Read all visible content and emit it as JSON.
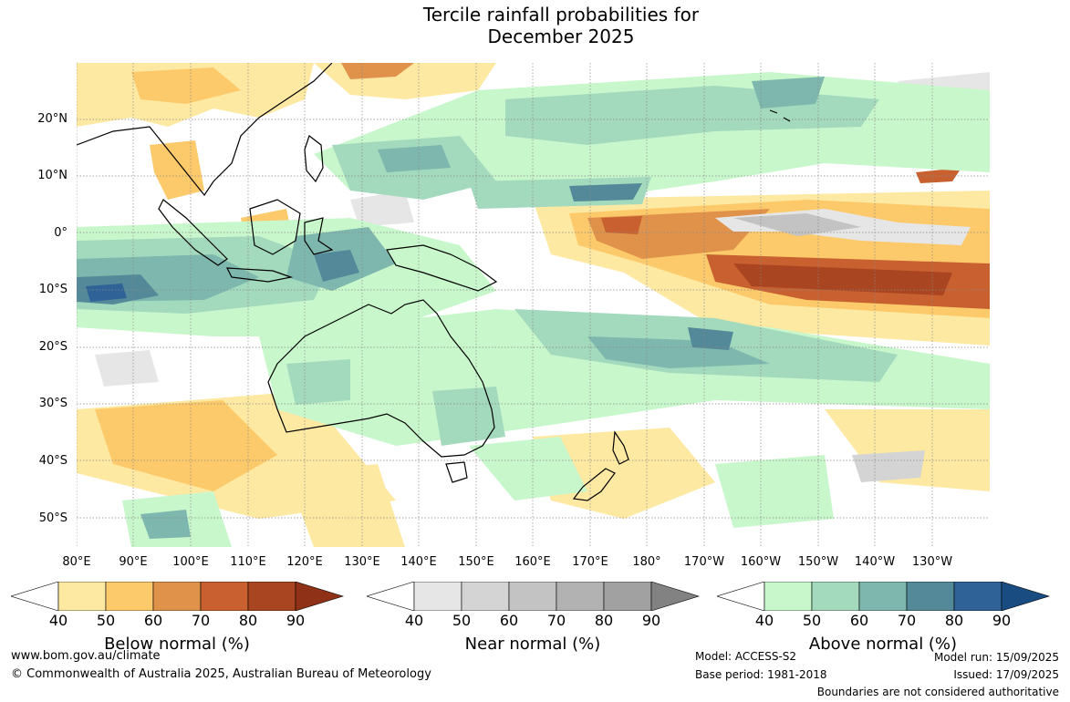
{
  "title_line1": "Tercile rainfall probabilities for",
  "title_line2": "December 2025",
  "lat_labels": [
    "20°N",
    "10°N",
    "0°",
    "10°S",
    "20°S",
    "30°S",
    "40°S",
    "50°S"
  ],
  "lon_labels": [
    "80°E",
    "90°E",
    "100°E",
    "110°E",
    "120°E",
    "130°E",
    "140°E",
    "150°E",
    "160°E",
    "170°E",
    "180°",
    "170°W",
    "160°W",
    "150°W",
    "140°W",
    "130°W"
  ],
  "colorbars": [
    {
      "name": "below",
      "label": "Below normal (%)",
      "ticks": [
        "40",
        "50",
        "60",
        "70",
        "80",
        "90"
      ],
      "colors": [
        "#ffffff",
        "#fee9a3",
        "#fdca6b",
        "#e0924a",
        "#c8602f",
        "#a94520",
        "#8e3116"
      ]
    },
    {
      "name": "near",
      "label": "Near normal (%)",
      "ticks": [
        "40",
        "50",
        "60",
        "70",
        "80",
        "90"
      ],
      "colors": [
        "#ffffff",
        "#e6e6e6",
        "#d4d4d4",
        "#c3c3c3",
        "#b2b2b2",
        "#a1a1a1",
        "#828282"
      ]
    },
    {
      "name": "above",
      "label": "Above normal (%)",
      "ticks": [
        "40",
        "50",
        "60",
        "70",
        "80",
        "90"
      ],
      "colors": [
        "#ffffff",
        "#c9f7cc",
        "#a3d9bd",
        "#7db7ad",
        "#54899a",
        "#2f6296",
        "#194d82"
      ]
    }
  ],
  "footer": {
    "url": "www.bom.gov.au/climate",
    "copyright": "© Commonwealth of Australia 2025, Australian Bureau of Meteorology",
    "model": "Model: ACCESS-S2",
    "base_period": "Base period: 1981-2018",
    "model_run": "Model run: 15/09/2025",
    "issued": "Issued: 17/09/2025",
    "disclaimer": "Boundaries are not considered authoritative"
  }
}
